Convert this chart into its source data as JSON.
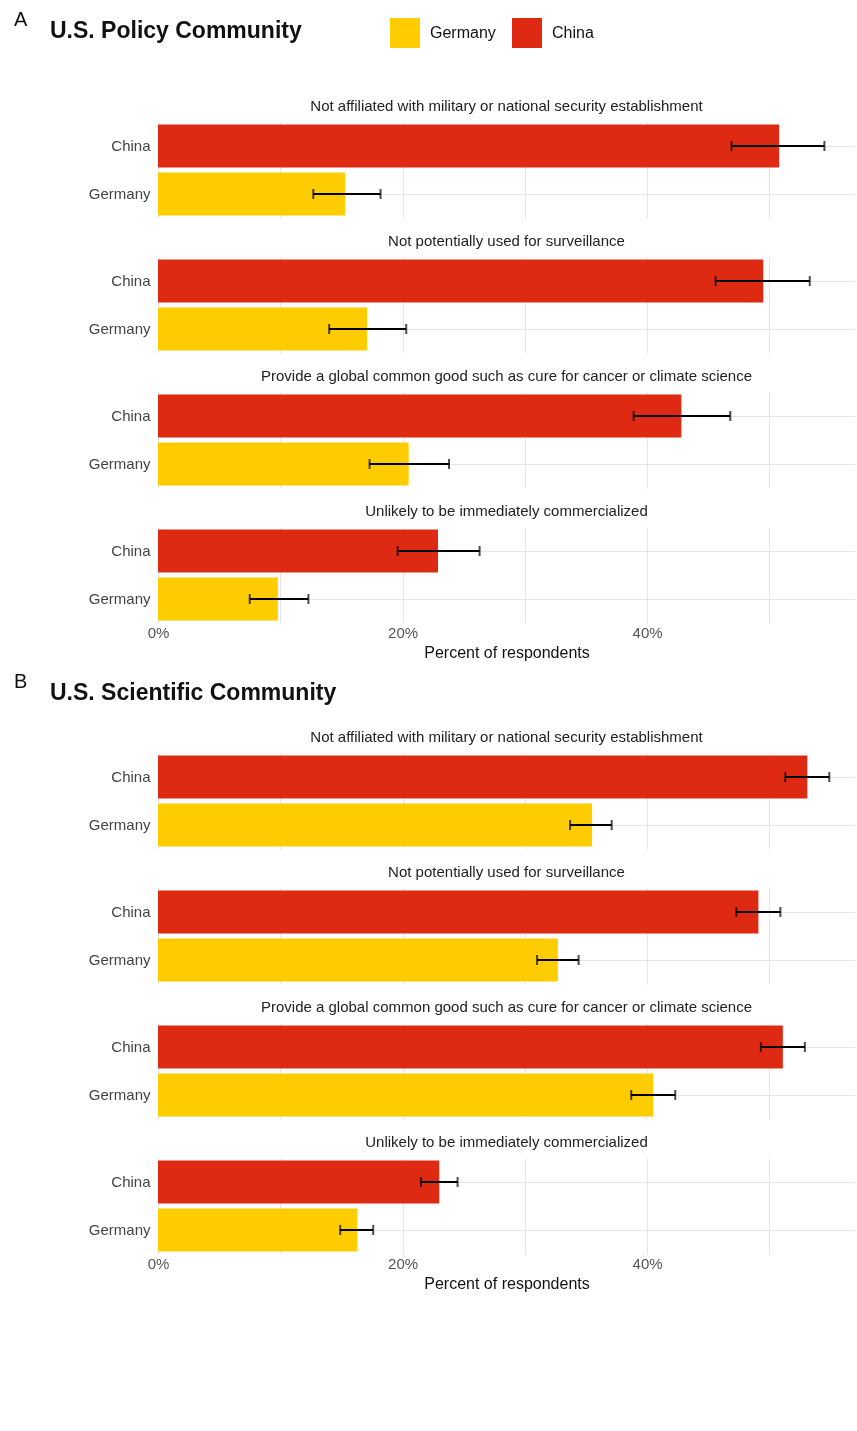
{
  "chart_data": [
    {
      "type": "bar",
      "orientation": "horizontal",
      "title": "U.S. Policy Community",
      "annotations": [
        "A"
      ],
      "subtitle": "Not affiliated with military or national security establishment",
      "categories": [
        "China",
        "Germany"
      ],
      "series": [
        {
          "name": "Germany",
          "color": "#ffcc00",
          "values": [
            null,
            15.3
          ],
          "errors": [
            null,
            [
              12.7,
              18.2
            ]
          ]
        },
        {
          "name": "China",
          "color": "#de2a12",
          "values": [
            50.8,
            null
          ],
          "errors": [
            [
              46.9,
              54.5
            ],
            null
          ]
        }
      ],
      "xlim": [
        0,
        57
      ],
      "xticks": [
        {
          "value": 0,
          "label": null
        },
        {
          "value": 10,
          "label": null
        },
        {
          "value": 20,
          "label": null
        },
        {
          "value": 30,
          "label": null
        },
        {
          "value": 40,
          "label": null
        },
        {
          "value": 50,
          "label": null
        }
      ],
      "grid": true,
      "legend": "top",
      "tick_labels": "y"
    },
    {
      "type": "bar",
      "orientation": "horizontal",
      "subtitle": "Not potentially used for surveillance",
      "categories": [
        "China",
        "Germany"
      ],
      "series": [
        {
          "color": "#ffcc00",
          "values": [
            null,
            17.1
          ],
          "errors": [
            null,
            [
              14.0,
              20.3
            ]
          ]
        },
        {
          "color": "#de2a12",
          "values": [
            49.5,
            null
          ],
          "errors": [
            [
              45.6,
              53.3
            ],
            null
          ]
        }
      ],
      "xlim": [
        0,
        57
      ],
      "xticks": [
        {
          "value": 0,
          "label": null
        },
        {
          "value": 10,
          "label": null
        },
        {
          "value": 20,
          "label": null
        },
        {
          "value": 30,
          "label": null
        },
        {
          "value": 40,
          "label": null
        },
        {
          "value": 50,
          "label": null
        }
      ],
      "grid": true,
      "tick_labels": "y"
    },
    {
      "type": "bar",
      "orientation": "horizontal",
      "subtitle": "Provide a global common good such as cure for cancer or climate science",
      "categories": [
        "China",
        "Germany"
      ],
      "series": [
        {
          "color": "#ffcc00",
          "values": [
            null,
            20.5
          ],
          "errors": [
            null,
            [
              17.3,
              23.8
            ]
          ]
        },
        {
          "color": "#de2a12",
          "values": [
            42.8,
            null
          ],
          "errors": [
            [
              38.9,
              46.8
            ],
            null
          ]
        }
      ],
      "xlim": [
        0,
        57
      ],
      "xticks": [
        {
          "value": 0,
          "label": null
        },
        {
          "value": 10,
          "label": null
        },
        {
          "value": 20,
          "label": null
        },
        {
          "value": 30,
          "label": null
        },
        {
          "value": 40,
          "label": null
        },
        {
          "value": 50,
          "label": null
        }
      ],
      "grid": true,
      "tick_labels": "y"
    },
    {
      "type": "bar",
      "orientation": "horizontal",
      "subtitle": "Unlikely to be immediately commercialized",
      "categories": [
        "China",
        "Germany"
      ],
      "series": [
        {
          "color": "#ffcc00",
          "values": [
            null,
            9.8
          ],
          "errors": [
            null,
            [
              7.5,
              12.3
            ]
          ]
        },
        {
          "color": "#de2a12",
          "values": [
            22.9,
            null
          ],
          "errors": [
            [
              19.6,
              26.3
            ],
            null
          ]
        }
      ],
      "xlim": [
        0,
        57
      ],
      "xticks": [
        {
          "value": 0,
          "label": "0%"
        },
        {
          "value": 10,
          "label": null
        },
        {
          "value": 20,
          "label": "20%"
        },
        {
          "value": 30,
          "label": null
        },
        {
          "value": 40,
          "label": "40%"
        },
        {
          "value": 50,
          "label": null
        }
      ],
      "grid": true,
      "xlabel": "Percent of respondents"
    },
    {
      "type": "bar",
      "orientation": "horizontal",
      "title": "U.S. Scientific Community",
      "annotations": [
        "B"
      ],
      "subtitle": "Not affiliated with military or national security establishment",
      "categories": [
        "China",
        "Germany"
      ],
      "series": [
        {
          "color": "#ffcc00",
          "values": [
            null,
            35.5
          ],
          "errors": [
            null,
            [
              33.7,
              37.1
            ]
          ]
        },
        {
          "color": "#de2a12",
          "values": [
            53.1,
            null
          ],
          "errors": [
            [
              51.3,
              54.9
            ],
            null
          ]
        }
      ],
      "xlim": [
        0,
        57
      ],
      "xticks": [
        {
          "value": 0,
          "label": null
        },
        {
          "value": 10,
          "label": null
        },
        {
          "value": 20,
          "label": null
        },
        {
          "value": 30,
          "label": null
        },
        {
          "value": 40,
          "label": null
        },
        {
          "value": 50,
          "label": null
        }
      ],
      "grid": true,
      "tick_labels": "y"
    },
    {
      "type": "bar",
      "orientation": "horizontal",
      "subtitle": "Not potentially used for surveillance",
      "categories": [
        "China",
        "Germany"
      ],
      "series": [
        {
          "color": "#ffcc00",
          "values": [
            null,
            32.7
          ],
          "errors": [
            null,
            [
              31.0,
              34.4
            ]
          ]
        },
        {
          "color": "#de2a12",
          "values": [
            49.1,
            null
          ],
          "errors": [
            [
              47.3,
              50.9
            ],
            null
          ]
        }
      ],
      "xlim": [
        0,
        57
      ],
      "xticks": [
        {
          "value": 0,
          "label": null
        },
        {
          "value": 10,
          "label": null
        },
        {
          "value": 20,
          "label": null
        },
        {
          "value": 30,
          "label": null
        },
        {
          "value": 40,
          "label": null
        },
        {
          "value": 50,
          "label": null
        }
      ],
      "grid": true,
      "tick_labels": "y"
    },
    {
      "type": "bar",
      "orientation": "horizontal",
      "subtitle": "Provide a global common good such as cure for cancer or climate science",
      "categories": [
        "China",
        "Germany"
      ],
      "series": [
        {
          "color": "#ffcc00",
          "values": [
            null,
            40.5
          ],
          "errors": [
            null,
            [
              38.7,
              42.3
            ]
          ]
        },
        {
          "color": "#de2a12",
          "values": [
            51.1,
            null
          ],
          "errors": [
            [
              49.3,
              52.9
            ],
            null
          ]
        }
      ],
      "xlim": [
        0,
        57
      ],
      "xticks": [
        {
          "value": 0,
          "label": null
        },
        {
          "value": 10,
          "label": null
        },
        {
          "value": 20,
          "label": null
        },
        {
          "value": 30,
          "label": null
        },
        {
          "value": 40,
          "label": null
        },
        {
          "value": 50,
          "label": null
        }
      ],
      "grid": true,
      "tick_labels": "y"
    },
    {
      "type": "bar",
      "orientation": "horizontal",
      "subtitle": "Unlikely to be immediately commercialized",
      "categories": [
        "China",
        "Germany"
      ],
      "series": [
        {
          "color": "#ffcc00",
          "values": [
            null,
            16.3
          ],
          "errors": [
            null,
            [
              14.9,
              17.6
            ]
          ]
        },
        {
          "color": "#de2a12",
          "values": [
            23.0,
            null
          ],
          "errors": [
            [
              21.5,
              24.5
            ],
            null
          ]
        }
      ],
      "xlim": [
        0,
        57
      ],
      "xticks": [
        {
          "value": 0,
          "label": "0%"
        },
        {
          "value": 10,
          "label": null
        },
        {
          "value": 20,
          "label": "20%"
        },
        {
          "value": 30,
          "label": null
        },
        {
          "value": 40,
          "label": "40%"
        },
        {
          "value": 50,
          "label": null
        }
      ],
      "grid": true,
      "xlabel": "Percent of respondents"
    }
  ]
}
